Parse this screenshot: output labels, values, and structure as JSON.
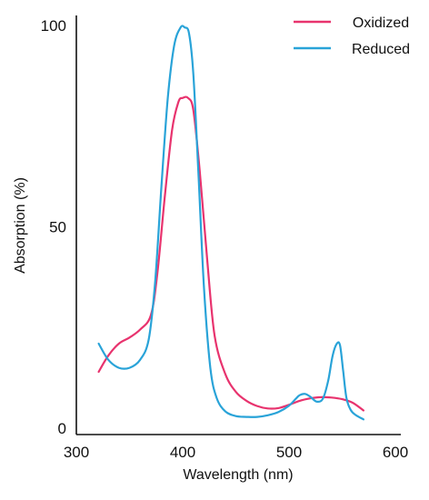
{
  "chart_data": {
    "type": "line",
    "title": "",
    "xlabel": "Wavelength (nm)",
    "ylabel": "Absorption (%)",
    "xlim": [
      300,
      600
    ],
    "ylim": [
      0,
      100
    ],
    "xticks": [
      300,
      400,
      500,
      600
    ],
    "yticks": [
      0,
      50,
      100
    ],
    "grid": false,
    "legend_position": "top-right",
    "series": [
      {
        "name": "Oxidized",
        "color": "#e8336e",
        "x": [
          321,
          330,
          340,
          350,
          360,
          370,
          376,
          383,
          390,
          396,
          400,
          405,
          410,
          416,
          423,
          430,
          440,
          450,
          460,
          470,
          480,
          490,
          500,
          510,
          520,
          530,
          540,
          550,
          560,
          570
        ],
        "y": [
          14,
          18,
          21,
          22.5,
          24.5,
          28,
          38,
          57,
          74,
          81,
          82,
          82,
          79,
          64,
          42,
          23,
          13.5,
          9,
          6.8,
          5.5,
          4.9,
          5,
          5.8,
          6.8,
          7.4,
          7.7,
          7.6,
          7.2,
          6.3,
          4.4
        ]
      },
      {
        "name": "Reduced",
        "color": "#29a3d8",
        "x": [
          321,
          330,
          340,
          350,
          360,
          368,
          374,
          380,
          386,
          392,
          398,
          402,
          406,
          410,
          415,
          420,
          426,
          432,
          440,
          450,
          460,
          470,
          480,
          490,
          500,
          506,
          510,
          515,
          520,
          526,
          532,
          537,
          541,
          545,
          548,
          551,
          554,
          558,
          563,
          570
        ],
        "y": [
          21,
          17,
          15,
          15,
          17,
          22,
          36,
          60,
          82,
          95,
          99.5,
          99.5,
          98,
          88,
          62,
          35,
          15,
          7.5,
          4.2,
          3,
          2.8,
          2.8,
          3.2,
          4,
          5.6,
          7.2,
          8.2,
          8.5,
          7.8,
          6.6,
          7.4,
          12,
          18,
          21,
          20.5,
          14,
          7.5,
          4.5,
          3.2,
          2.2
        ]
      }
    ]
  }
}
